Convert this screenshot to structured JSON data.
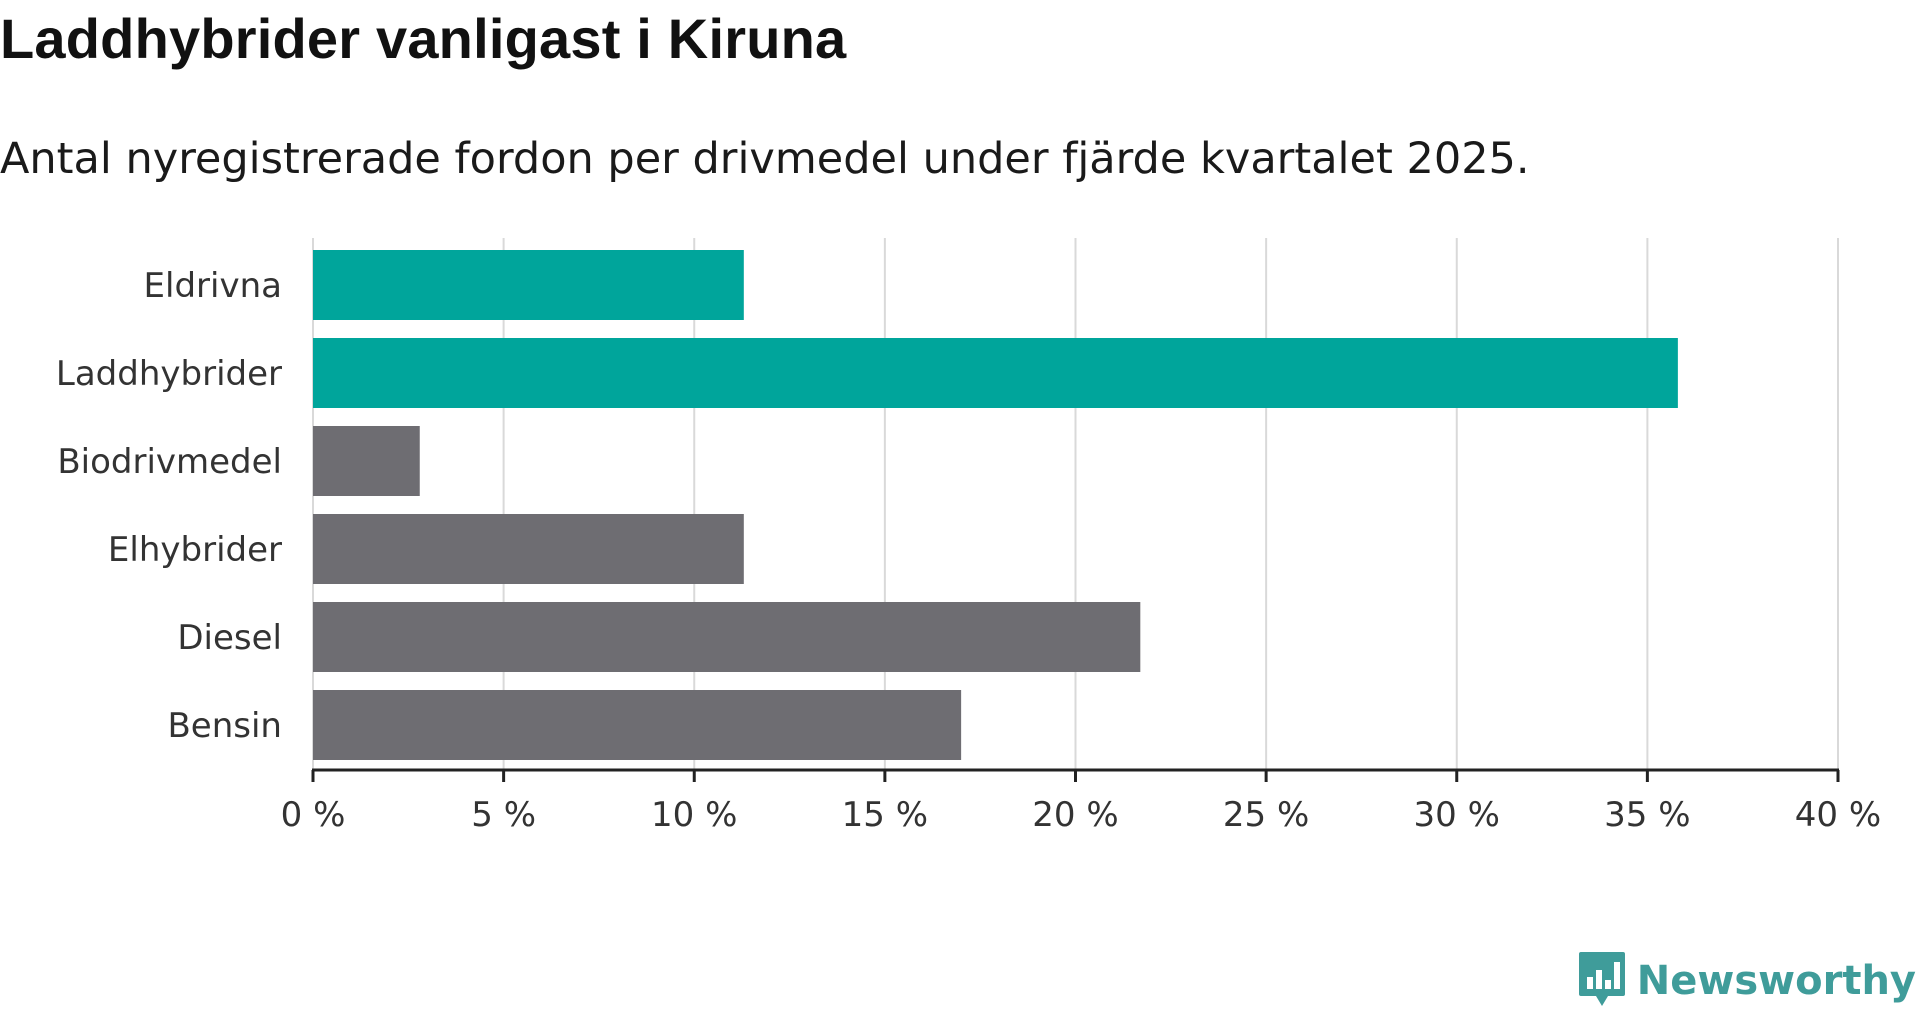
{
  "header": {
    "title": "Laddhybrider vanligast i Kiruna",
    "subtitle": "Antal nyregistrerade fordon per drivmedel under fjärde kvartalet 2025."
  },
  "colors": {
    "highlight": "#00a59b",
    "default": "#6e6d72",
    "grid": "#d9d9d9",
    "axis": "#222222",
    "brand": "#3f9c9a"
  },
  "chart_data": {
    "type": "bar",
    "orientation": "horizontal",
    "title": "Laddhybrider vanligast i Kiruna",
    "subtitle": "Antal nyregistrerade fordon per drivmedel under fjärde kvartalet 2025.",
    "categories": [
      "Eldrivna",
      "Laddhybrider",
      "Biodrivmedel",
      "Elhybrider",
      "Diesel",
      "Bensin"
    ],
    "values": [
      11.3,
      35.8,
      2.8,
      11.3,
      21.7,
      17.0
    ],
    "highlighted": [
      true,
      true,
      false,
      false,
      false,
      false
    ],
    "xlim": [
      0,
      40
    ],
    "xticks": [
      0,
      5,
      10,
      15,
      20,
      25,
      30,
      35,
      40
    ],
    "tick_labels": [
      "0 %",
      "5 %",
      "10 %",
      "15 %",
      "20 %",
      "25 %",
      "30 %",
      "35 %",
      "40 %"
    ],
    "xlabel": "",
    "ylabel": "",
    "grid": true,
    "legend": "none"
  },
  "branding": {
    "logo_text": "Newsworthy",
    "logo_icon": "bar-chart-speech-bubble-icon"
  }
}
